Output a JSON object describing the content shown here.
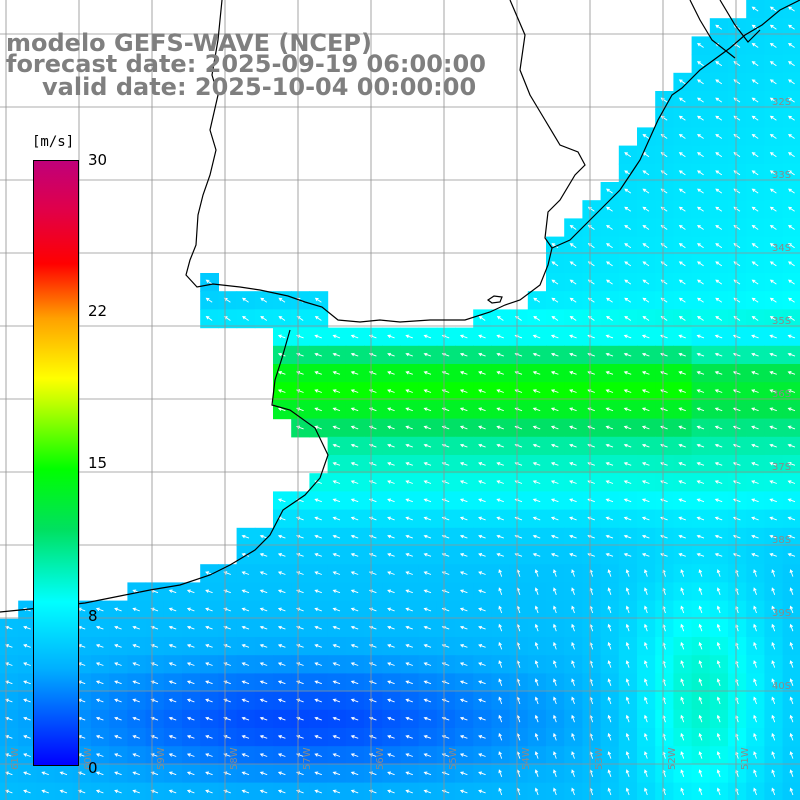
{
  "title": {
    "line1": "modelo GEFS-WAVE (NCEP)",
    "line2": "forecast date: 2025-09-19 06:00:00",
    "line3": "valid date: 2025-10-04 00:00:00"
  },
  "colorbar": {
    "unit": "[m/s]",
    "ticks": [
      "30",
      "22",
      "15",
      "8",
      "0"
    ],
    "range": [
      0,
      30
    ],
    "stops": [
      "#0000ff",
      "#00b0ff",
      "#00ffff",
      "#00e060",
      "#00ff00",
      "#c0ff00",
      "#ffff00",
      "#ffa000",
      "#ff0000",
      "#e0004a",
      "#c0007a"
    ]
  },
  "grid": {
    "lon_labels": [
      "61W",
      "60W",
      "59W",
      "58W",
      "57W",
      "56W",
      "55W",
      "54W",
      "53W",
      "52W",
      "51W"
    ],
    "lat_labels": [
      "32S",
      "33S",
      "34S",
      "35S",
      "36S",
      "37S",
      "38S",
      "39S",
      "40S"
    ]
  },
  "field": {
    "variable": "wind speed and direction",
    "units": "m/s",
    "max_region": "~14 m/s (green) in band 35.5S–36.5S",
    "min_region": "~3 m/s (blue) near coast and southwest"
  },
  "colors": {
    "coastline": "#000000",
    "grid": "#909090",
    "title": "#7f7f7f",
    "arrows": "#ffffff"
  }
}
